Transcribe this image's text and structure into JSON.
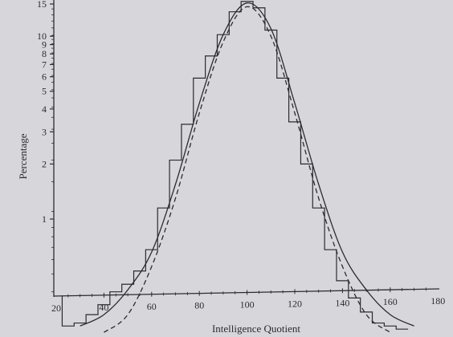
{
  "chart_data": {
    "type": "line",
    "xlabel": "Intelligence Quotient",
    "ylabel": "Percentage",
    "xlim": [
      20,
      180
    ],
    "x_ticks": [
      20,
      40,
      60,
      80,
      100,
      120,
      140,
      160,
      180
    ],
    "y_ticks": [
      1,
      2,
      3,
      4,
      5,
      6,
      7,
      8,
      9,
      10,
      15
    ],
    "y_scale": "log",
    "series": [
      {
        "style": "histogram",
        "x": [
          25,
          30,
          35,
          40,
          45,
          50,
          55,
          60,
          65,
          70,
          75,
          80,
          85,
          90,
          95,
          100,
          105,
          110,
          115,
          120,
          125,
          130,
          135,
          140,
          145,
          150,
          155,
          160,
          165
        ],
        "values": [
          0.26,
          0.27,
          0.3,
          0.34,
          0.4,
          0.44,
          0.52,
          0.68,
          1.15,
          2.1,
          3.3,
          5.9,
          7.8,
          10.2,
          13.6,
          15.5,
          14.3,
          10.8,
          5.9,
          3.4,
          2.0,
          1.15,
          0.68,
          0.46,
          0.37,
          0.31,
          0.27,
          0.26,
          0.25
        ]
      },
      {
        "style": "solid-curve",
        "x": [
          30,
          40,
          50,
          60,
          70,
          80,
          90,
          100,
          110,
          120,
          130,
          140,
          150,
          160,
          170
        ],
        "values": [
          0.26,
          0.3,
          0.41,
          0.66,
          1.55,
          4.3,
          10.2,
          15.2,
          11.0,
          4.3,
          1.55,
          0.66,
          0.41,
          0.3,
          0.26
        ]
      },
      {
        "style": "dashed-curve",
        "x": [
          40,
          50,
          60,
          70,
          80,
          90,
          100,
          110,
          120,
          130,
          140,
          150,
          160
        ],
        "values": [
          0.24,
          0.3,
          0.55,
          1.3,
          3.8,
          9.3,
          14.5,
          10.0,
          3.8,
          1.3,
          0.55,
          0.3,
          0.24
        ]
      }
    ]
  }
}
